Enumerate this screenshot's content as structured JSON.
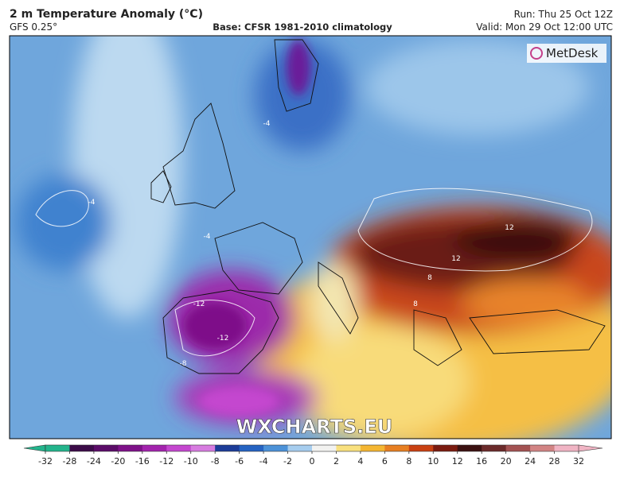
{
  "header": {
    "title": "2 m Temperature Anomaly (°C)",
    "model": "GFS 0.25°",
    "base": "Base: CFSR 1981-2010 climatology",
    "run": "Run: Thu 25 Oct 12Z",
    "valid": "Valid: Mon 29 Oct 12:00 UTC"
  },
  "logo": "MetDesk",
  "watermark": "WXCHARTS.EU",
  "contour_labels": [
    "-4",
    "-4",
    "-12",
    "-12",
    "-8",
    "12",
    "12",
    "8",
    "8",
    "-4"
  ],
  "colorbar": {
    "ticks": [
      -32,
      -28,
      -24,
      -20,
      -16,
      -12,
      -10,
      -8,
      -6,
      -4,
      -2,
      0,
      2,
      4,
      6,
      8,
      10,
      12,
      16,
      20,
      24,
      28,
      32
    ],
    "colors": [
      "#23b48c",
      "#3b0b48",
      "#5b0c68",
      "#7e1189",
      "#a223ad",
      "#c447cf",
      "#d77ce0",
      "#1c3c98",
      "#2563c2",
      "#4c92d8",
      "#a6cdee",
      "#f2f2f0",
      "#f8e07e",
      "#f4b632",
      "#e77f22",
      "#c94112",
      "#7b1b10",
      "#3b1111",
      "#6b2b2b",
      "#a35252",
      "#d28484",
      "#f0b4c4"
    ]
  }
}
